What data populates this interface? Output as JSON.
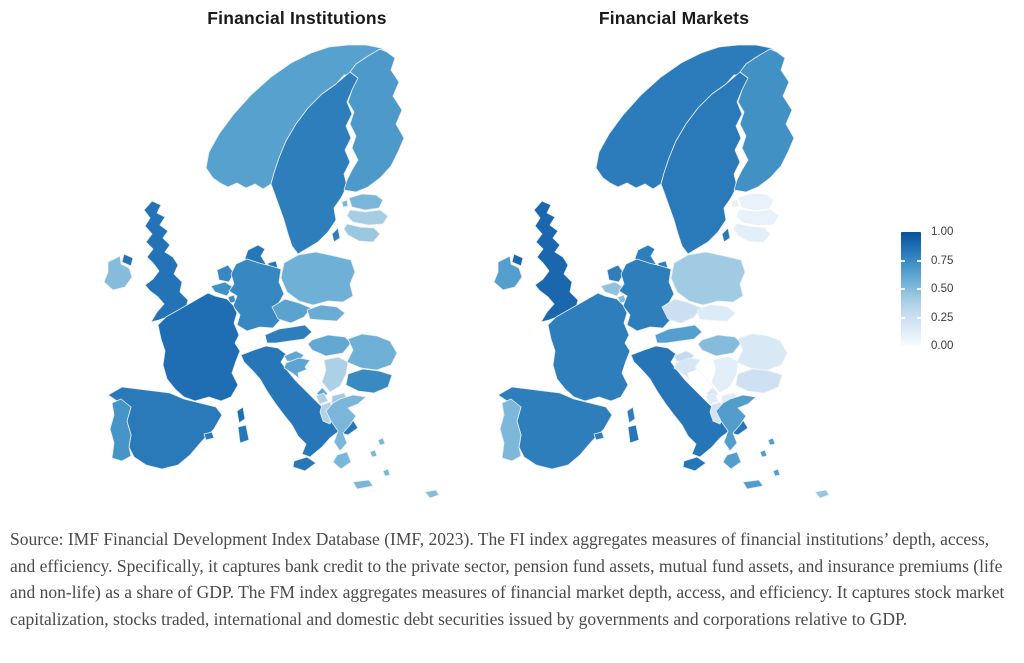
{
  "maps": [
    {
      "id": "fi",
      "title": "Financial Institutions"
    },
    {
      "id": "fm",
      "title": "Financial Markets"
    }
  ],
  "legend": {
    "ticks": [
      "1.00",
      "0.75",
      "0.50",
      "0.25",
      "0.00"
    ]
  },
  "caption": "Source: IMF Financial Development Index Database (IMF, 2023). The FI index aggregates measures of financial institutions’ depth, access, and efficiency. Specifically, it captures bank credit to the private sector, pension fund assets, mutual fund assets, and insurance premiums (life and non-life) as a share of GDP. The FM index aggregates measures of financial market depth, access, and efficiency. It captures stock market capitalization, stocks traded, international and domestic debt securities issued by governments and corporations relative to GDP.",
  "chart_data": {
    "type": "heatmap",
    "subtype": "choropleth",
    "region": "Europe",
    "title": "Financial Development Index – FI and FM subindices",
    "value_range": [
      0,
      1
    ],
    "legend_ticks": [
      1.0,
      0.75,
      0.5,
      0.25,
      0.0
    ],
    "legend_position": "right",
    "palette": [
      "#f7fbff",
      "#deebf7",
      "#c6dbef",
      "#9ecae1",
      "#6baed6",
      "#4292c6",
      "#2171b5",
      "#08519c"
    ],
    "no_data_color": "#ffffff",
    "series": [
      {
        "key": "fi",
        "name": "Financial Institutions"
      },
      {
        "key": "fm",
        "name": "Financial Markets"
      }
    ],
    "countries": [
      {
        "id": "norway",
        "name": "Norway",
        "fi": 0.64,
        "fm": 0.81
      },
      {
        "id": "sweden",
        "name": "Sweden",
        "fi": 0.8,
        "fm": 0.82
      },
      {
        "id": "finland",
        "name": "Finland",
        "fi": 0.68,
        "fm": 0.72
      },
      {
        "id": "denmark",
        "name": "Denmark",
        "fi": 0.83,
        "fm": 0.8
      },
      {
        "id": "estonia",
        "name": "Estonia",
        "fi": 0.53,
        "fm": 0.08
      },
      {
        "id": "latvia",
        "name": "Latvia",
        "fi": 0.4,
        "fm": 0.08
      },
      {
        "id": "lithuania",
        "name": "Lithuania",
        "fi": 0.44,
        "fm": 0.12
      },
      {
        "id": "united-kingdom",
        "name": "United Kingdom",
        "fi": 0.85,
        "fm": 0.9
      },
      {
        "id": "ireland",
        "name": "Ireland",
        "fi": 0.5,
        "fm": 0.65
      },
      {
        "id": "netherlands",
        "name": "Netherlands",
        "fi": 0.76,
        "fm": 0.8
      },
      {
        "id": "belgium",
        "name": "Belgium",
        "fi": 0.72,
        "fm": 0.47
      },
      {
        "id": "luxembourg",
        "name": "Luxembourg",
        "fi": 0.74,
        "fm": 0.5
      },
      {
        "id": "germany",
        "name": "Germany",
        "fi": 0.76,
        "fm": 0.8
      },
      {
        "id": "poland",
        "name": "Poland",
        "fi": 0.56,
        "fm": 0.42
      },
      {
        "id": "czechia",
        "name": "Czechia",
        "fi": 0.63,
        "fm": 0.25
      },
      {
        "id": "slovakia",
        "name": "Slovakia",
        "fi": 0.58,
        "fm": 0.15
      },
      {
        "id": "austria",
        "name": "Austria",
        "fi": 0.8,
        "fm": 0.65
      },
      {
        "id": "switzerland",
        "name": "Switzerland",
        "fi": null,
        "fm": null
      },
      {
        "id": "france",
        "name": "France",
        "fi": 0.87,
        "fm": 0.8
      },
      {
        "id": "spain",
        "name": "Spain",
        "fi": 0.82,
        "fm": 0.8
      },
      {
        "id": "portugal",
        "name": "Portugal",
        "fi": 0.7,
        "fm": 0.52
      },
      {
        "id": "italy",
        "name": "Italy",
        "fi": 0.83,
        "fm": 0.84
      },
      {
        "id": "slovenia",
        "name": "Slovenia",
        "fi": 0.6,
        "fm": 0.29
      },
      {
        "id": "croatia",
        "name": "Croatia",
        "fi": 0.62,
        "fm": 0.19
      },
      {
        "id": "bosnia",
        "name": "Bosnia and Herzegovina",
        "fi": null,
        "fm": null
      },
      {
        "id": "serbia",
        "name": "Serbia",
        "fi": 0.38,
        "fm": 0.12
      },
      {
        "id": "montenegro",
        "name": "Montenegro",
        "fi": 0.38,
        "fm": 0.15
      },
      {
        "id": "albania",
        "name": "Albania",
        "fi": 0.36,
        "fm": 0.22
      },
      {
        "id": "north-macedonia",
        "name": "North Macedonia",
        "fi": 0.42,
        "fm": 0.13
      },
      {
        "id": "hungary",
        "name": "Hungary",
        "fi": 0.6,
        "fm": 0.5
      },
      {
        "id": "romania",
        "name": "Romania",
        "fi": 0.56,
        "fm": 0.17
      },
      {
        "id": "bulgaria",
        "name": "Bulgaria",
        "fi": 0.75,
        "fm": 0.24
      },
      {
        "id": "greece",
        "name": "Greece",
        "fi": 0.53,
        "fm": 0.66
      },
      {
        "id": "cyprus",
        "name": "Cyprus",
        "fi": 0.5,
        "fm": 0.45
      }
    ]
  }
}
